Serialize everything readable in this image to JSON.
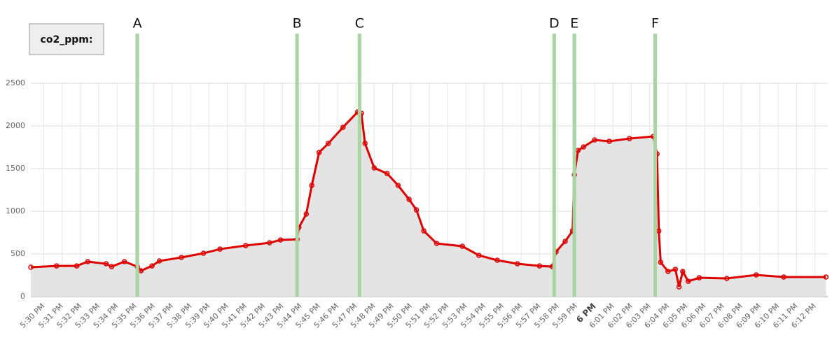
{
  "chart_data": {
    "type": "line",
    "series": [
      {
        "name": "co2_ppm:",
        "color": "#e00000",
        "fill": "#e4e4e4",
        "x": [
          1049.3,
          1050.7,
          1051.8,
          1052.4,
          1053.4,
          1053.7,
          1054.4,
          1055.1,
          1055.3,
          1055.9,
          1056.3,
          1057.5,
          1058.7,
          1059.6,
          1061.0,
          1062.3,
          1062.9,
          1063.8,
          1063.9,
          1064.3,
          1064.6,
          1065.0,
          1065.5,
          1066.3,
          1067.1,
          1067.3,
          1067.5,
          1068.0,
          1068.7,
          1069.3,
          1069.9,
          1070.3,
          1070.7,
          1071.4,
          1072.8,
          1073.7,
          1074.7,
          1075.8,
          1077.0,
          1077.7,
          1077.9,
          1078.4,
          1078.8,
          1078.9,
          1079.1,
          1079.4,
          1080.0,
          1080.8,
          1081.9,
          1083.2,
          1083.4,
          1083.5,
          1083.6,
          1084.0,
          1084.4,
          1084.6,
          1084.8,
          1085.1,
          1085.7,
          1087.2,
          1088.8,
          1090.3,
          1092.6
        ],
        "values": [
          344,
          360,
          360,
          410,
          385,
          352,
          410,
          352,
          303,
          360,
          418,
          459,
          508,
          557,
          598,
          631,
          664,
          672,
          811,
          967,
          1303,
          1689,
          1795,
          1984,
          2164,
          2148,
          1795,
          1508,
          1443,
          1303,
          1139,
          1016,
          770,
          623,
          590,
          484,
          426,
          385,
          360,
          352,
          525,
          648,
          770,
          1426,
          1713,
          1754,
          1836,
          1820,
          1852,
          1877,
          1672,
          770,
          402,
          295,
          320,
          115,
          295,
          180,
          221,
          213,
          254,
          230,
          230
        ]
      }
    ],
    "markers": [
      {
        "label": "A",
        "x": 1055.1
      },
      {
        "label": "B",
        "x": 1063.8
      },
      {
        "label": "C",
        "x": 1067.2
      },
      {
        "label": "D",
        "x": 1077.8
      },
      {
        "label": "E",
        "x": 1078.9
      },
      {
        "label": "F",
        "x": 1083.3
      }
    ],
    "marker_color": "#a8d5a2",
    "xlim": [
      1049.3,
      1092.7
    ],
    "ylim": [
      0,
      2500
    ],
    "yticks": [
      0,
      500,
      1000,
      1500,
      2000,
      2500
    ],
    "xticks": [
      {
        "value": 1050,
        "label": "5:30 PM"
      },
      {
        "value": 1051,
        "label": "5:31 PM"
      },
      {
        "value": 1052,
        "label": "5:32 PM"
      },
      {
        "value": 1053,
        "label": "5:33 PM"
      },
      {
        "value": 1054,
        "label": "5:34 PM"
      },
      {
        "value": 1055,
        "label": "5:35 PM"
      },
      {
        "value": 1056,
        "label": "5:36 PM"
      },
      {
        "value": 1057,
        "label": "5:37 PM"
      },
      {
        "value": 1058,
        "label": "5:38 PM"
      },
      {
        "value": 1059,
        "label": "5:39 PM"
      },
      {
        "value": 1060,
        "label": "5:40 PM"
      },
      {
        "value": 1061,
        "label": "5:41 PM"
      },
      {
        "value": 1062,
        "label": "5:42 PM"
      },
      {
        "value": 1063,
        "label": "5:43 PM"
      },
      {
        "value": 1064,
        "label": "5:44 PM"
      },
      {
        "value": 1065,
        "label": "5:45 PM"
      },
      {
        "value": 1066,
        "label": "5:46 PM"
      },
      {
        "value": 1067,
        "label": "5:47 PM"
      },
      {
        "value": 1068,
        "label": "5:48 PM"
      },
      {
        "value": 1069,
        "label": "5:49 PM"
      },
      {
        "value": 1070,
        "label": "5:50 PM"
      },
      {
        "value": 1071,
        "label": "5:51 PM"
      },
      {
        "value": 1072,
        "label": "5:52 PM"
      },
      {
        "value": 1073,
        "label": "5:53 PM"
      },
      {
        "value": 1074,
        "label": "5:54 PM"
      },
      {
        "value": 1075,
        "label": "5:55 PM"
      },
      {
        "value": 1076,
        "label": "5:56 PM"
      },
      {
        "value": 1077,
        "label": "5:57 PM"
      },
      {
        "value": 1078,
        "label": "5:58 PM"
      },
      {
        "value": 1079,
        "label": "5:59 PM"
      },
      {
        "value": 1080,
        "label": "6 PM"
      },
      {
        "value": 1081,
        "label": "6:01 PM"
      },
      {
        "value": 1082,
        "label": "6:02 PM"
      },
      {
        "value": 1083,
        "label": "6:03 PM"
      },
      {
        "value": 1084,
        "label": "6:04 PM"
      },
      {
        "value": 1085,
        "label": "6:05 PM"
      },
      {
        "value": 1086,
        "label": "6:06 PM"
      },
      {
        "value": 1087,
        "label": "6:07 PM"
      },
      {
        "value": 1088,
        "label": "6:08 PM"
      },
      {
        "value": 1089,
        "label": "6:09 PM"
      },
      {
        "value": 1090,
        "label": "6:10 PM"
      },
      {
        "value": 1091,
        "label": "6:11 PM"
      },
      {
        "value": 1092,
        "label": "6:12 PM"
      }
    ],
    "grid": true
  }
}
